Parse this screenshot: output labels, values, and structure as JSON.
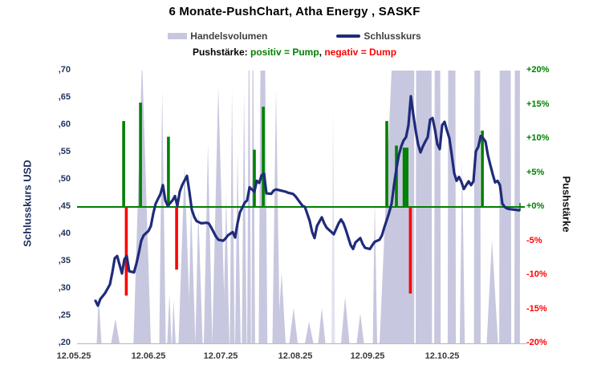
{
  "header": {
    "title": "6 Monate-PushChart,  Atha Energy , SASKF"
  },
  "legend": {
    "volume_label": "Handelsvolumen",
    "close_label": "Schlusskurs"
  },
  "subtitle": {
    "prefix": "Pushstärke:  ",
    "pump": "positiv = Pump",
    "comma": ",  ",
    "dump": "negativ = Dump"
  },
  "colors": {
    "volume": "#c7c7df",
    "close_line": "#1f2b7a",
    "pump_green": "#008000",
    "dump_red": "#ff0000",
    "zero_line": "#008000",
    "baseline_gray": "#bfbfbf",
    "left_ticks": "#20355e",
    "x_ticks": "#3a3a3a"
  },
  "chart_data": {
    "type": "composite",
    "title": "6 Monate-PushChart,  Atha Energy , SASKF",
    "series_info": [
      {
        "name": "Handelsvolumen",
        "type": "area",
        "color": "#c7c7df"
      },
      {
        "name": "Schlusskurs",
        "type": "line",
        "color": "#1f2b7a"
      },
      {
        "name": "Pushstärke positiv (Pump)",
        "type": "bar",
        "color": "#008000"
      },
      {
        "name": "Pushstärke negativ (Dump)",
        "type": "bar",
        "color": "#ff0000"
      }
    ],
    "price_axis": {
      "label": "Schlusskurs USD",
      "min": 0.2,
      "max": 0.7,
      "tick_step": 0.05,
      "tick_labels": [
        ",70",
        ",65",
        ",60",
        ",55",
        ",50",
        ",45",
        ",40",
        ",35",
        ",30",
        ",25",
        ",20"
      ]
    },
    "push_axis": {
      "label": "Pushstärke",
      "min": -20,
      "max": 20,
      "tick_step": 5,
      "tick_labels": [
        "+20%",
        "+15%",
        "+10%",
        "+5%",
        "+0%",
        "-5%",
        "-10%",
        "-15%",
        "-20%"
      ]
    },
    "x_axis": {
      "tick_labels": [
        "12.05.25",
        "12.06.25",
        "12.07.25",
        "12.08.25",
        "12.09.25",
        "12.10.25"
      ],
      "tick_days": [
        0,
        31,
        61,
        92,
        122,
        153
      ],
      "days_span": 185,
      "grid": false
    },
    "zero_line_price": 0.45,
    "close_points_day_price": [
      [
        9,
        0.278
      ],
      [
        10,
        0.269
      ],
      [
        11,
        0.281
      ],
      [
        13,
        0.292
      ],
      [
        14,
        0.3
      ],
      [
        15,
        0.308
      ],
      [
        16,
        0.33
      ],
      [
        17,
        0.356
      ],
      [
        18,
        0.36
      ],
      [
        19,
        0.344
      ],
      [
        20,
        0.328
      ],
      [
        21,
        0.354
      ],
      [
        22,
        0.36
      ],
      [
        23,
        0.332
      ],
      [
        25,
        0.33
      ],
      [
        26,
        0.346
      ],
      [
        27,
        0.366
      ],
      [
        28,
        0.388
      ],
      [
        29,
        0.398
      ],
      [
        31,
        0.406
      ],
      [
        32,
        0.415
      ],
      [
        33,
        0.438
      ],
      [
        34,
        0.456
      ],
      [
        36,
        0.474
      ],
      [
        37,
        0.49
      ],
      [
        38,
        0.462
      ],
      [
        39,
        0.452
      ],
      [
        41,
        0.462
      ],
      [
        42,
        0.47
      ],
      [
        43,
        0.452
      ],
      [
        44,
        0.478
      ],
      [
        45,
        0.49
      ],
      [
        47,
        0.507
      ],
      [
        48,
        0.478
      ],
      [
        49,
        0.445
      ],
      [
        50,
        0.432
      ],
      [
        51,
        0.424
      ],
      [
        53,
        0.42
      ],
      [
        55,
        0.421
      ],
      [
        56,
        0.42
      ],
      [
        57,
        0.413
      ],
      [
        59,
        0.396
      ],
      [
        60,
        0.39
      ],
      [
        62,
        0.388
      ],
      [
        63,
        0.392
      ],
      [
        64,
        0.398
      ],
      [
        66,
        0.404
      ],
      [
        67,
        0.394
      ],
      [
        68,
        0.42
      ],
      [
        69,
        0.44
      ],
      [
        71,
        0.458
      ],
      [
        72,
        0.462
      ],
      [
        73,
        0.486
      ],
      [
        75,
        0.478
      ],
      [
        76,
        0.498
      ],
      [
        77,
        0.494
      ],
      [
        78,
        0.508
      ],
      [
        79,
        0.511
      ],
      [
        80,
        0.475
      ],
      [
        82,
        0.474
      ],
      [
        83,
        0.48
      ],
      [
        84,
        0.482
      ],
      [
        86,
        0.48
      ],
      [
        88,
        0.478
      ],
      [
        89,
        0.476
      ],
      [
        91,
        0.474
      ],
      [
        92,
        0.47
      ],
      [
        94,
        0.458
      ],
      [
        95,
        0.452
      ],
      [
        96,
        0.45
      ],
      [
        98,
        0.424
      ],
      [
        99,
        0.404
      ],
      [
        100,
        0.393
      ],
      [
        101,
        0.415
      ],
      [
        103,
        0.431
      ],
      [
        104,
        0.42
      ],
      [
        105,
        0.412
      ],
      [
        107,
        0.404
      ],
      [
        108,
        0.4
      ],
      [
        110,
        0.42
      ],
      [
        111,
        0.427
      ],
      [
        112,
        0.42
      ],
      [
        113,
        0.408
      ],
      [
        114,
        0.394
      ],
      [
        115,
        0.38
      ],
      [
        116,
        0.373
      ],
      [
        117,
        0.385
      ],
      [
        119,
        0.393
      ],
      [
        120,
        0.382
      ],
      [
        121,
        0.375
      ],
      [
        123,
        0.373
      ],
      [
        124,
        0.38
      ],
      [
        125,
        0.386
      ],
      [
        127,
        0.39
      ],
      [
        128,
        0.398
      ],
      [
        129,
        0.413
      ],
      [
        130,
        0.426
      ],
      [
        131,
        0.44
      ],
      [
        132,
        0.456
      ],
      [
        133,
        0.49
      ],
      [
        134,
        0.52
      ],
      [
        135,
        0.545
      ],
      [
        136,
        0.561
      ],
      [
        137,
        0.572
      ],
      [
        138,
        0.578
      ],
      [
        139,
        0.6
      ],
      [
        140,
        0.653
      ],
      [
        141,
        0.62
      ],
      [
        142,
        0.59
      ],
      [
        143,
        0.565
      ],
      [
        144,
        0.55
      ],
      [
        145,
        0.561
      ],
      [
        146,
        0.57
      ],
      [
        147,
        0.578
      ],
      [
        148,
        0.61
      ],
      [
        149,
        0.613
      ],
      [
        150,
        0.592
      ],
      [
        151,
        0.565
      ],
      [
        152,
        0.556
      ],
      [
        153,
        0.6
      ],
      [
        154,
        0.606
      ],
      [
        155,
        0.59
      ],
      [
        156,
        0.576
      ],
      [
        157,
        0.545
      ],
      [
        158,
        0.512
      ],
      [
        159,
        0.498
      ],
      [
        160,
        0.505
      ],
      [
        161,
        0.496
      ],
      [
        162,
        0.483
      ],
      [
        163,
        0.49
      ],
      [
        164,
        0.497
      ],
      [
        165,
        0.49
      ],
      [
        166,
        0.497
      ],
      [
        167,
        0.552
      ],
      [
        168,
        0.56
      ],
      [
        169,
        0.58
      ],
      [
        170,
        0.576
      ],
      [
        171,
        0.57
      ],
      [
        172,
        0.545
      ],
      [
        173,
        0.527
      ],
      [
        174,
        0.51
      ],
      [
        175,
        0.495
      ],
      [
        176,
        0.498
      ],
      [
        177,
        0.49
      ],
      [
        178,
        0.456
      ],
      [
        179,
        0.45
      ],
      [
        180,
        0.447
      ],
      [
        181,
        0.446
      ],
      [
        183,
        0.445
      ],
      [
        185,
        0.444
      ]
    ],
    "push_bars_day_pct": [
      [
        20.7,
        12.6
      ],
      [
        21.8,
        -13.0
      ],
      [
        27.7,
        15.3
      ],
      [
        39.3,
        10.3
      ],
      [
        42.7,
        -9.2
      ],
      [
        75,
        8.4
      ],
      [
        78.7,
        14.7
      ],
      [
        130,
        12.6
      ],
      [
        134,
        9.0
      ],
      [
        137.2,
        8.7
      ],
      [
        138.4,
        8.7
      ],
      [
        139.8,
        -12.7
      ],
      [
        169.7,
        11.2
      ]
    ],
    "volume_spikes_day_heightpct": [
      [
        9.5,
        10.3,
        10.3,
        11.5,
        17
      ],
      [
        15.5,
        17.3,
        17.3,
        19,
        9
      ],
      [
        24.8,
        28.2,
        28.5,
        32,
        100
      ],
      [
        35.5,
        36.7,
        36.7,
        38.2,
        93
      ],
      [
        38.8,
        39.7,
        39.7,
        40.6,
        18
      ],
      [
        40.8,
        41.4,
        41.4,
        42.3,
        16
      ],
      [
        43.5,
        46,
        46,
        48.5,
        65
      ],
      [
        47.5,
        48.7,
        48.7,
        50.5,
        51
      ],
      [
        50.5,
        51.7,
        51.7,
        53.5,
        49
      ],
      [
        54,
        55.7,
        55.7,
        57.5,
        73
      ],
      [
        57.5,
        60,
        60,
        63,
        94
      ],
      [
        62,
        63.3,
        63.3,
        64.6,
        55
      ],
      [
        64.8,
        65.7,
        65.7,
        66.8,
        93
      ],
      [
        67,
        68,
        68,
        69.3,
        70
      ],
      [
        69.8,
        70.7,
        70.7,
        71.8,
        93
      ],
      [
        72,
        72.6,
        73,
        73.6,
        100
      ],
      [
        73.8,
        74.2,
        74.6,
        75.3,
        100
      ],
      [
        76.8,
        77.5,
        79.5,
        80.4,
        100
      ],
      [
        82.5,
        84,
        84,
        85.6,
        93
      ],
      [
        84.6,
        86.3,
        86.3,
        88,
        26
      ],
      [
        89.5,
        91.3,
        91.3,
        93,
        13
      ],
      [
        96,
        97.7,
        97.7,
        99.5,
        8
      ],
      [
        101.5,
        103,
        103,
        104.5,
        13
      ],
      [
        107,
        107.7,
        107.7,
        108.5,
        86,
        1
      ],
      [
        111,
        112.7,
        112.7,
        114.5,
        17
      ],
      [
        117.5,
        119,
        119,
        120.5,
        11
      ],
      [
        124.2,
        125,
        125,
        126,
        53
      ],
      [
        127,
        132,
        141.4,
        141.4,
        100
      ],
      [
        142,
        142.2,
        148.6,
        148.8,
        100
      ],
      [
        149.7,
        149.9,
        152.2,
        152.4,
        100
      ],
      [
        155.3,
        155.5,
        158.5,
        158.7,
        100
      ],
      [
        160.3,
        161.3,
        161.3,
        162.4,
        67
      ],
      [
        166.2,
        166.4,
        168.8,
        169,
        100
      ],
      [
        171.5,
        173.7,
        173.7,
        176.2,
        38
      ],
      [
        176.7,
        176.9,
        181.5,
        181.7,
        100
      ],
      [
        183,
        183.2,
        185.3,
        185.3,
        100
      ]
    ]
  }
}
